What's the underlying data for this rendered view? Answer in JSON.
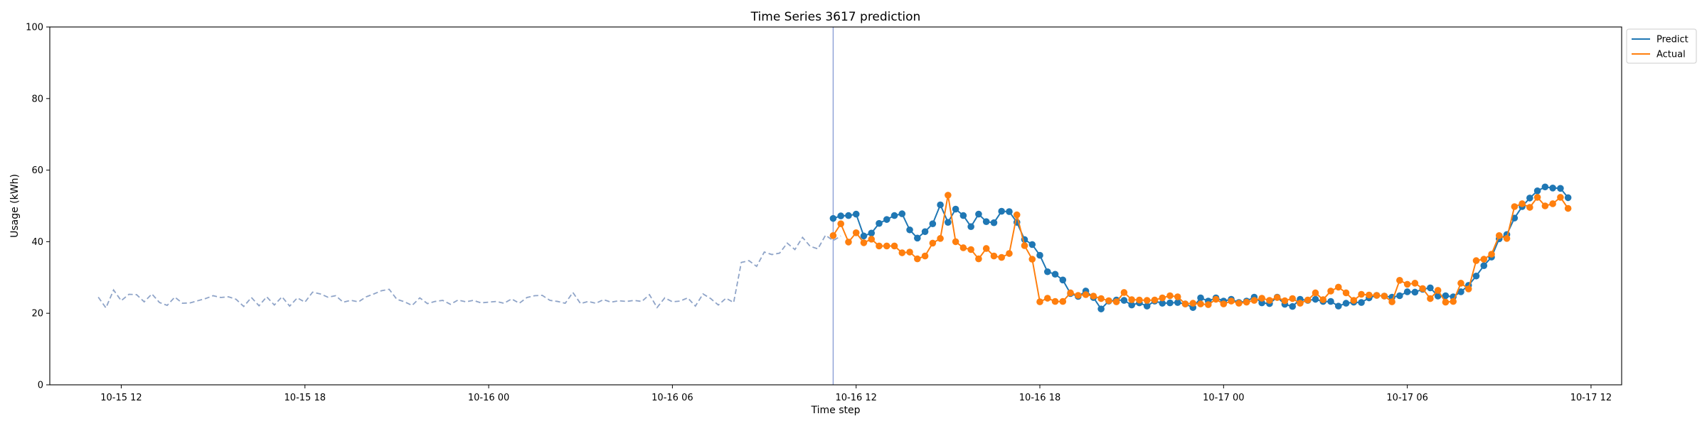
{
  "chart_data": {
    "type": "line",
    "title": "Time Series 3617 prediction",
    "xlabel": "Time step",
    "ylabel": "Usage (kWh)",
    "ylim": [
      0,
      100
    ],
    "yticks": [
      0,
      20,
      40,
      60,
      80,
      100
    ],
    "xlim": [
      "2025-10-15 09:40",
      "2025-10-17 13:00"
    ],
    "xticks": [
      {
        "t": "2025-10-15 12:00",
        "label": "10-15 12"
      },
      {
        "t": "2025-10-15 18:00",
        "label": "10-15 18"
      },
      {
        "t": "2025-10-16 00:00",
        "label": "10-16 00"
      },
      {
        "t": "2025-10-16 06:00",
        "label": "10-16 06"
      },
      {
        "t": "2025-10-16 12:00",
        "label": "10-16 12"
      },
      {
        "t": "2025-10-16 18:00",
        "label": "10-16 18"
      },
      {
        "t": "2025-10-17 00:00",
        "label": "10-17 00"
      },
      {
        "t": "2025-10-17 06:00",
        "label": "10-17 06"
      },
      {
        "t": "2025-10-17 12:00",
        "label": "10-17 12"
      }
    ],
    "grid": false,
    "legend_position": "outside-top-right",
    "forecast_start": "2025-10-16 11:15",
    "colors": {
      "history": "#8fa4c8",
      "predict": "#1f77b4",
      "actual": "#ff7f0e",
      "divider": "#8c9fd6"
    },
    "history": {
      "start": "2025-10-15 11:15",
      "step_minutes": 15,
      "values": [
        24.5,
        21.5,
        26.5,
        23.5,
        25.3,
        25.2,
        23.2,
        25.4,
        23.0,
        22.2,
        24.5,
        22.8,
        22.9,
        23.5,
        24.1,
        24.9,
        24.4,
        24.6,
        23.9,
        21.9,
        24.4,
        22.1,
        24.6,
        22.3,
        24.6,
        22.0,
        24.3,
        23.1,
        25.9,
        25.4,
        24.5,
        24.9,
        23.1,
        23.6,
        23.2,
        24.6,
        25.4,
        26.3,
        26.7,
        23.9,
        23.2,
        22.2,
        24.3,
        22.7,
        23.3,
        23.6,
        22.5,
        23.7,
        23.2,
        23.6,
        22.9,
        23.1,
        23.3,
        22.8,
        24.0,
        22.8,
        24.4,
        24.9,
        25.0,
        23.6,
        23.3,
        22.8,
        25.8,
        22.7,
        23.3,
        22.8,
        23.8,
        23.1,
        23.5,
        23.3,
        23.6,
        23.3,
        25.2,
        21.6,
        24.3,
        23.2,
        23.4,
        24.3,
        22.0,
        25.4,
        24.1,
        22.3,
        24.2,
        23.0,
        34.2,
        34.7,
        33.1,
        37.1,
        36.4,
        36.8,
        39.6,
        37.8,
        41.2,
        38.7,
        38.0,
        41.8,
        40.3,
        41.6
      ]
    },
    "x": {
      "start": "2025-10-16 11:15",
      "step_minutes": 15
    },
    "series": [
      {
        "name": "Predict",
        "values": [
          46.5,
          47.2,
          47.3,
          47.7,
          41.6,
          42.4,
          45.1,
          46.2,
          47.3,
          47.8,
          43.3,
          41.0,
          42.8,
          45.0,
          50.3,
          45.4,
          49.1,
          47.3,
          44.2,
          47.7,
          45.6,
          45.3,
          48.5,
          48.4,
          45.4,
          40.6,
          39.2,
          36.2,
          31.6,
          30.9,
          29.3,
          25.5,
          24.7,
          26.2,
          24.4,
          21.2,
          23.4,
          23.7,
          23.6,
          22.3,
          22.9,
          22.0,
          23.4,
          22.8,
          22.9,
          23.0,
          22.6,
          21.6,
          24.3,
          23.4,
          24.3,
          23.4,
          23.9,
          23.0,
          23.4,
          24.5,
          22.9,
          22.7,
          24.5,
          22.5,
          21.9,
          23.9,
          23.6,
          23.9,
          23.3,
          23.3,
          22.0,
          22.8,
          23.1,
          23.0,
          24.3,
          25.0,
          24.8,
          24.5,
          24.9,
          26.0,
          25.9,
          26.7,
          27.1,
          24.8,
          24.9,
          24.6,
          26.0,
          27.8,
          30.4,
          33.3,
          35.7,
          40.8,
          42.0,
          46.6,
          49.8,
          52.2,
          54.2,
          55.3,
          55.0,
          54.9,
          52.3
        ]
      },
      {
        "name": "Actual",
        "values": [
          41.7,
          45.0,
          39.9,
          42.5,
          39.7,
          40.7,
          38.8,
          38.8,
          38.8,
          36.9,
          37.1,
          35.2,
          36.0,
          39.6,
          40.9,
          53.0,
          40.0,
          38.3,
          37.8,
          35.2,
          38.1,
          36.0,
          35.6,
          36.7,
          47.5,
          38.9,
          35.1,
          23.2,
          24.2,
          23.3,
          23.3,
          25.7,
          25.0,
          25.2,
          24.8,
          24.1,
          23.5,
          23.2,
          25.8,
          23.8,
          23.7,
          23.6,
          23.7,
          24.3,
          24.9,
          24.6,
          22.6,
          22.8,
          22.6,
          22.4,
          23.9,
          22.6,
          23.4,
          22.8,
          23.1,
          23.6,
          24.2,
          23.6,
          24.4,
          23.5,
          24.1,
          22.8,
          23.7,
          25.7,
          23.8,
          26.2,
          27.3,
          25.7,
          23.6,
          25.3,
          25.1,
          25.0,
          24.8,
          23.2,
          29.2,
          28.1,
          28.4,
          26.9,
          24.1,
          26.4,
          23.1,
          23.3,
          28.4,
          26.8,
          34.7,
          35.1,
          36.5,
          41.7,
          40.9,
          49.8,
          50.6,
          49.6,
          52.4,
          50.0,
          50.6,
          52.4,
          49.3
        ]
      }
    ]
  }
}
